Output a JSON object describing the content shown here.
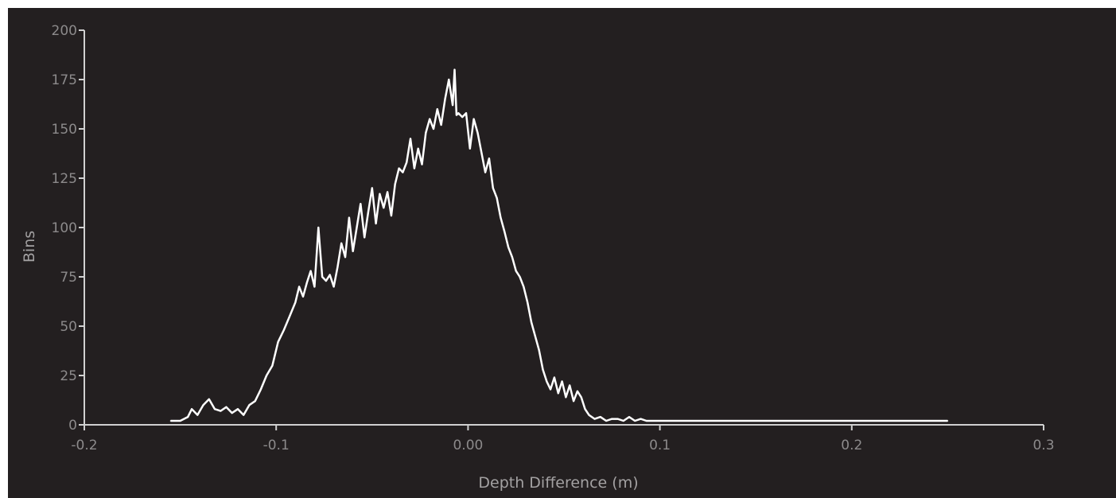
{
  "chart_data": {
    "type": "line",
    "title": "",
    "xlabel": "Depth Difference (m)",
    "ylabel": "Bins",
    "xlim": [
      -0.2,
      0.3
    ],
    "ylim": [
      0,
      200
    ],
    "grid": false,
    "x_tick_labels": [
      "-0.2",
      "-0.1",
      "0.00",
      "0.1",
      "0.2",
      "0.3"
    ],
    "x_tick_values": [
      -0.2,
      -0.1,
      0.0,
      0.1,
      0.2,
      0.3
    ],
    "y_tick_labels": [
      "0",
      "25",
      "50",
      "75",
      "100",
      "125",
      "150",
      "175",
      "200"
    ],
    "y_tick_values": [
      0,
      25,
      50,
      75,
      100,
      125,
      150,
      175,
      200
    ],
    "line_color": "#ffffff",
    "axis_color": "#d0d0d0",
    "series": [
      {
        "x": [
          -0.155,
          -0.15,
          -0.146,
          -0.144,
          -0.141,
          -0.138,
          -0.135,
          -0.132,
          -0.129,
          -0.126,
          -0.123,
          -0.12,
          -0.117,
          -0.114,
          -0.111,
          -0.108,
          -0.105,
          -0.102,
          -0.099,
          -0.096,
          -0.093,
          -0.09,
          -0.088,
          -0.086,
          -0.084,
          -0.082,
          -0.08,
          -0.078,
          -0.076,
          -0.074,
          -0.072,
          -0.07,
          -0.068,
          -0.066,
          -0.064,
          -0.062,
          -0.06,
          -0.058,
          -0.056,
          -0.054,
          -0.052,
          -0.05,
          -0.048,
          -0.046,
          -0.044,
          -0.042,
          -0.04,
          -0.038,
          -0.036,
          -0.034,
          -0.032,
          -0.03,
          -0.028,
          -0.026,
          -0.024,
          -0.022,
          -0.02,
          -0.018,
          -0.016,
          -0.014,
          -0.012,
          -0.01,
          -0.008,
          -0.007,
          -0.006,
          -0.005,
          -0.003,
          -0.001,
          0.001,
          0.003,
          0.005,
          0.007,
          0.009,
          0.011,
          0.013,
          0.015,
          0.017,
          0.019,
          0.021,
          0.023,
          0.025,
          0.027,
          0.029,
          0.031,
          0.033,
          0.035,
          0.037,
          0.039,
          0.041,
          0.043,
          0.045,
          0.047,
          0.049,
          0.051,
          0.053,
          0.055,
          0.057,
          0.059,
          0.061,
          0.063,
          0.066,
          0.069,
          0.072,
          0.075,
          0.078,
          0.081,
          0.084,
          0.087,
          0.09,
          0.093,
          0.096,
          0.1,
          0.12,
          0.14,
          0.16,
          0.18,
          0.2,
          0.22,
          0.24,
          0.25
        ],
        "y": [
          2,
          2,
          4,
          8,
          5,
          10,
          13,
          8,
          7,
          9,
          6,
          8,
          5,
          10,
          12,
          18,
          25,
          30,
          42,
          48,
          55,
          62,
          70,
          65,
          72,
          78,
          70,
          100,
          75,
          73,
          76,
          70,
          80,
          92,
          85,
          105,
          88,
          100,
          112,
          95,
          108,
          120,
          102,
          117,
          110,
          118,
          106,
          122,
          130,
          128,
          133,
          145,
          130,
          140,
          132,
          148,
          155,
          150,
          160,
          152,
          165,
          175,
          162,
          180,
          157,
          158,
          156,
          158,
          140,
          155,
          148,
          138,
          128,
          135,
          120,
          115,
          105,
          98,
          90,
          85,
          78,
          75,
          70,
          62,
          52,
          45,
          38,
          28,
          22,
          18,
          24,
          16,
          22,
          14,
          20,
          12,
          17,
          14,
          8,
          5,
          3,
          4,
          2,
          3,
          3,
          2,
          4,
          2,
          3,
          2,
          2,
          2,
          2,
          2,
          2,
          2,
          2,
          2,
          2,
          2
        ]
      }
    ]
  }
}
